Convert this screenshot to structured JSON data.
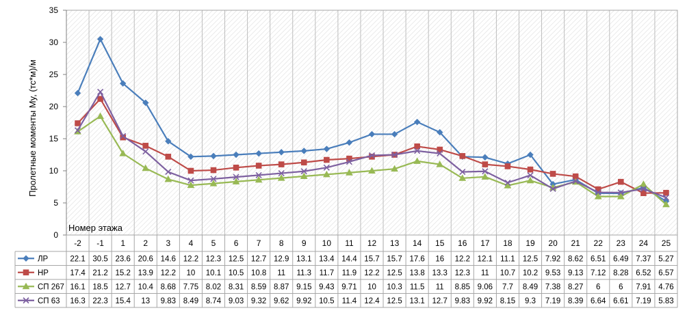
{
  "chart_data": {
    "type": "line",
    "title": "",
    "ylabel": "Пролетные моменты My, (тс*м)/м",
    "xlabel": "Номер этажа",
    "ylim": [
      0,
      35
    ],
    "yticks": [
      0,
      5,
      10,
      15,
      20,
      25,
      30,
      35
    ],
    "grid": "hatched background with vertical grid lines",
    "legend": "data table below plot",
    "categories": [
      "-2",
      "-1",
      "1",
      "2",
      "3",
      "4",
      "5",
      "6",
      "7",
      "8",
      "9",
      "10",
      "11",
      "12",
      "13",
      "14",
      "15",
      "16",
      "17",
      "18",
      "19",
      "20",
      "21",
      "22",
      "23",
      "24",
      "25"
    ],
    "series": [
      {
        "name": "ЛР",
        "color": "#4a7ebb",
        "marker": "diamond",
        "values": [
          22.1,
          30.5,
          23.6,
          20.6,
          14.6,
          12.2,
          12.3,
          12.5,
          12.7,
          12.9,
          13.1,
          13.4,
          14.4,
          15.7,
          15.7,
          17.6,
          16,
          12.2,
          12.1,
          11.1,
          12.5,
          7.92,
          8.62,
          6.51,
          6.49,
          7.37,
          5.27
        ]
      },
      {
        "name": "НР",
        "color": "#be4b48",
        "marker": "square",
        "values": [
          17.4,
          21.2,
          15.2,
          13.9,
          12.2,
          10,
          10.1,
          10.5,
          10.8,
          11,
          11.3,
          11.7,
          11.9,
          12.2,
          12.5,
          13.8,
          13.3,
          12.3,
          11,
          10.7,
          10.2,
          9.53,
          9.13,
          7.12,
          8.28,
          6.52,
          6.57
        ]
      },
      {
        "name": "СП 267",
        "color": "#98b954",
        "marker": "triangle",
        "values": [
          16.1,
          18.5,
          12.7,
          10.4,
          8.68,
          7.75,
          8.02,
          8.31,
          8.59,
          8.87,
          9.15,
          9.43,
          9.71,
          10,
          10.3,
          11.5,
          11,
          8.85,
          9.06,
          7.7,
          8.49,
          7.38,
          8.27,
          6,
          6,
          7.91,
          4.76
        ]
      },
      {
        "name": "СП 63",
        "color": "#7d60a0",
        "marker": "x",
        "values": [
          16.3,
          22.3,
          15.4,
          13,
          9.83,
          8.49,
          8.74,
          9.03,
          9.32,
          9.62,
          9.92,
          10.5,
          11.4,
          12.4,
          12.5,
          13.1,
          12.7,
          9.83,
          9.92,
          8.15,
          9.3,
          7.19,
          8.39,
          6.64,
          6.61,
          7.19,
          5.83
        ]
      }
    ]
  }
}
